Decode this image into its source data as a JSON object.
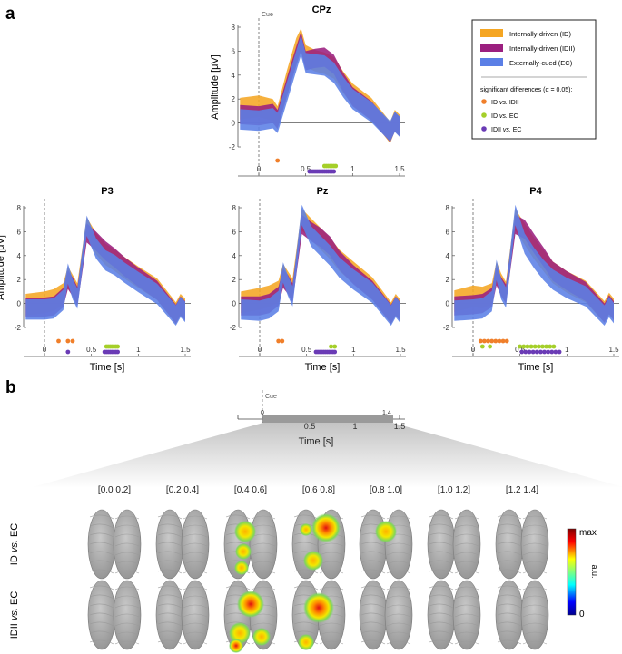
{
  "panel_labels": {
    "a": "a",
    "b": "b"
  },
  "colors": {
    "ID": "#f5a623",
    "IDII": "#9b1f7f",
    "EC": "#5b7fe6",
    "sig_ID_IDII": "#f07f2a",
    "sig_ID_EC": "#a5cf2a",
    "sig_IDII_EC": "#6a3bb5"
  },
  "legend": {
    "series": [
      "Internally-driven (ID)",
      "Internally-driven (IDII)",
      "Externally-cued (EC)"
    ],
    "sig_title": "significant differences (α = 0.05):",
    "sig_items": [
      {
        "pre": "ID ",
        "vs": "vs.",
        "post": " IDII"
      },
      {
        "pre": "ID ",
        "vs": "vs.",
        "post": " EC"
      },
      {
        "pre": "IDII ",
        "vs": "vs.",
        "post": " EC"
      }
    ]
  },
  "cue_label": "Cue",
  "chart_data": [
    {
      "type": "area",
      "title": "CPz",
      "ylabel": "Amplitude [μV]",
      "xlabel": "",
      "xlim": [
        -0.2,
        1.5
      ],
      "ylim": [
        -2,
        8
      ],
      "yticks": [
        "-2",
        "0",
        "2",
        "4",
        "6",
        "8"
      ],
      "xticks": [
        "0",
        "0.5",
        "1",
        "1.5"
      ],
      "series": [
        {
          "key": "ID",
          "x": [
            -0.2,
            0,
            0.15,
            0.2,
            0.3,
            0.4,
            0.45,
            0.5,
            0.6,
            0.7,
            0.8,
            0.9,
            1.0,
            1.2,
            1.4,
            1.45,
            1.5
          ],
          "y": [
            1.2,
            1.4,
            1.1,
            0.5,
            3.5,
            6.2,
            7.0,
            5.6,
            5.2,
            5.0,
            4.6,
            3.4,
            2.4,
            1.2,
            -0.8,
            0.2,
            -0.2
          ]
        },
        {
          "key": "IDII",
          "x": [
            -0.2,
            0,
            0.15,
            0.2,
            0.3,
            0.4,
            0.45,
            0.5,
            0.6,
            0.7,
            0.8,
            0.9,
            1.0,
            1.2,
            1.4,
            1.45,
            1.5
          ],
          "y": [
            0.7,
            0.6,
            0.8,
            0.3,
            3.0,
            5.6,
            6.8,
            5.2,
            5.4,
            5.5,
            4.9,
            3.4,
            2.2,
            1.0,
            -0.8,
            0.1,
            -0.3
          ]
        },
        {
          "key": "EC",
          "x": [
            -0.2,
            0,
            0.15,
            0.2,
            0.3,
            0.4,
            0.45,
            0.5,
            0.6,
            0.7,
            0.8,
            0.9,
            1.0,
            1.2,
            1.4,
            1.45,
            1.5
          ],
          "y": [
            0.3,
            0.2,
            0.4,
            0.0,
            2.6,
            5.2,
            6.5,
            5.0,
            4.9,
            4.8,
            4.2,
            3.0,
            2.0,
            0.9,
            -0.7,
            0.1,
            -0.3
          ]
        }
      ],
      "sig": [
        {
          "key": "sig_ID_IDII",
          "row": 0,
          "x": [
            0.2
          ]
        },
        {
          "key": "sig_ID_EC",
          "row": 1,
          "x": [
            0.7,
            0.72,
            0.74,
            0.76,
            0.78,
            0.8,
            0.82
          ]
        },
        {
          "key": "sig_IDII_EC",
          "row": 2,
          "x": [
            0.54,
            0.56,
            0.58,
            0.6,
            0.62,
            0.64,
            0.66,
            0.68,
            0.7,
            0.72,
            0.74,
            0.76,
            0.78,
            0.8
          ]
        }
      ]
    },
    {
      "type": "area",
      "title": "P3",
      "ylabel": "Amplitude [μV]",
      "xlabel": "Time [s]",
      "xlim": [
        -0.2,
        1.5
      ],
      "ylim": [
        -2,
        8
      ],
      "yticks": [
        "-2",
        "0",
        "2",
        "4",
        "6",
        "8"
      ],
      "xticks": [
        "0",
        "0.5",
        "1",
        "1.5"
      ],
      "series": [
        {
          "key": "ID",
          "x": [
            -0.2,
            0,
            0.1,
            0.2,
            0.25,
            0.3,
            0.35,
            0.45,
            0.55,
            0.65,
            0.75,
            0.85,
            1.0,
            1.2,
            1.4,
            1.45,
            1.5
          ],
          "y": [
            -0.1,
            0.1,
            0.3,
            0.8,
            2.2,
            1.5,
            0.8,
            6.3,
            5.0,
            4.1,
            3.6,
            3.0,
            2.2,
            1.2,
            -0.8,
            -0.1,
            -0.5
          ]
        },
        {
          "key": "IDII",
          "x": [
            -0.2,
            0,
            0.1,
            0.2,
            0.25,
            0.3,
            0.35,
            0.45,
            0.55,
            0.65,
            0.75,
            0.85,
            1.0,
            1.2,
            1.4,
            1.45,
            1.5
          ],
          "y": [
            -0.3,
            -0.3,
            -0.2,
            0.5,
            2.0,
            1.4,
            0.6,
            5.9,
            5.2,
            4.4,
            3.8,
            3.1,
            2.2,
            1.1,
            -0.9,
            -0.2,
            -0.6
          ]
        },
        {
          "key": "EC",
          "x": [
            -0.2,
            0,
            0.1,
            0.2,
            0.25,
            0.3,
            0.35,
            0.45,
            0.55,
            0.65,
            0.75,
            0.85,
            1.0,
            1.2,
            1.4,
            1.45,
            1.5
          ],
          "y": [
            -0.5,
            -0.5,
            -0.4,
            0.3,
            2.5,
            1.2,
            0.4,
            6.5,
            4.6,
            3.6,
            3.2,
            2.6,
            1.8,
            0.8,
            -1.0,
            -0.3,
            -0.7
          ]
        }
      ],
      "sig": [
        {
          "key": "sig_ID_IDII",
          "row": 0,
          "x": [
            0.15,
            0.25,
            0.3
          ]
        },
        {
          "key": "sig_IDII_EC",
          "row": 2,
          "x": [
            0.25
          ]
        },
        {
          "key": "sig_ID_EC",
          "row": 1,
          "x": [
            0.66,
            0.68,
            0.7,
            0.72,
            0.74,
            0.76,
            0.78
          ]
        },
        {
          "key": "sig_IDII_EC",
          "row": 2,
          "x": [
            0.64,
            0.66,
            0.68,
            0.7,
            0.72,
            0.74,
            0.76,
            0.78
          ]
        }
      ]
    },
    {
      "type": "area",
      "title": "Pz",
      "ylabel": "",
      "xlabel": "Time [s]",
      "xlim": [
        -0.2,
        1.5
      ],
      "ylim": [
        -2,
        8
      ],
      "yticks": [
        "-2",
        "0",
        "2",
        "4",
        "6",
        "8"
      ],
      "xticks": [
        "0",
        "0.5",
        "1",
        "1.5"
      ],
      "series": [
        {
          "key": "ID",
          "x": [
            -0.2,
            0,
            0.1,
            0.2,
            0.25,
            0.3,
            0.35,
            0.45,
            0.55,
            0.65,
            0.75,
            0.85,
            1.0,
            1.2,
            1.4,
            1.45,
            1.5
          ],
          "y": [
            0.1,
            0.4,
            0.6,
            1.0,
            2.4,
            1.8,
            1.2,
            7.0,
            6.2,
            5.4,
            4.6,
            3.6,
            2.6,
            1.3,
            -0.8,
            -0.1,
            -0.6
          ]
        },
        {
          "key": "IDII",
          "x": [
            -0.2,
            0,
            0.1,
            0.2,
            0.25,
            0.3,
            0.35,
            0.45,
            0.55,
            0.65,
            0.75,
            0.85,
            1.0,
            1.2,
            1.4,
            1.45,
            1.5
          ],
          "y": [
            -0.2,
            -0.2,
            0.0,
            0.6,
            2.1,
            1.6,
            0.9,
            6.6,
            6.0,
            5.5,
            4.8,
            3.6,
            2.4,
            1.1,
            -0.9,
            -0.2,
            -0.7
          ]
        },
        {
          "key": "EC",
          "x": [
            -0.2,
            0,
            0.1,
            0.2,
            0.25,
            0.3,
            0.35,
            0.45,
            0.55,
            0.65,
            0.75,
            0.85,
            1.0,
            1.2,
            1.4,
            1.45,
            1.5
          ],
          "y": [
            -0.5,
            -0.6,
            -0.4,
            0.2,
            2.6,
            1.5,
            0.6,
            7.4,
            5.6,
            4.8,
            4.0,
            3.0,
            2.0,
            0.9,
            -1.0,
            -0.3,
            -0.8
          ]
        }
      ],
      "sig": [
        {
          "key": "sig_ID_IDII",
          "row": 0,
          "x": [
            0.2,
            0.24
          ]
        },
        {
          "key": "sig_ID_EC",
          "row": 1,
          "x": [
            0.76,
            0.8
          ]
        },
        {
          "key": "sig_IDII_EC",
          "row": 2,
          "x": [
            0.6,
            0.62,
            0.64,
            0.66,
            0.68,
            0.7,
            0.72,
            0.74,
            0.76,
            0.78,
            0.8
          ]
        }
      ]
    },
    {
      "type": "area",
      "title": "P4",
      "ylabel": "",
      "xlabel": "Time [s]",
      "xlim": [
        -0.2,
        1.5
      ],
      "ylim": [
        -2,
        8
      ],
      "yticks": [
        "-2",
        "0",
        "2",
        "4",
        "6",
        "8"
      ],
      "xticks": [
        "0",
        "0.5",
        "1",
        "1.5"
      ],
      "series": [
        {
          "key": "ID",
          "x": [
            -0.2,
            0,
            0.1,
            0.2,
            0.25,
            0.3,
            0.35,
            0.45,
            0.55,
            0.65,
            0.75,
            0.85,
            1.0,
            1.2,
            1.4,
            1.45,
            1.5
          ],
          "y": [
            0.2,
            0.6,
            0.5,
            0.8,
            2.6,
            1.6,
            0.9,
            7.0,
            5.8,
            4.6,
            3.6,
            2.6,
            1.8,
            1.0,
            -0.7,
            0.0,
            -0.5
          ]
        },
        {
          "key": "IDII",
          "x": [
            -0.2,
            0,
            0.1,
            0.2,
            0.25,
            0.3,
            0.35,
            0.45,
            0.55,
            0.65,
            0.75,
            0.85,
            1.0,
            1.2,
            1.4,
            1.45,
            1.5
          ],
          "y": [
            -0.2,
            -0.1,
            0.0,
            0.5,
            2.3,
            1.4,
            0.8,
            6.6,
            6.2,
            5.0,
            3.9,
            2.7,
            1.9,
            1.0,
            -0.8,
            -0.1,
            -0.6
          ]
        },
        {
          "key": "EC",
          "x": [
            -0.2,
            0,
            0.1,
            0.2,
            0.25,
            0.3,
            0.35,
            0.45,
            0.55,
            0.65,
            0.75,
            0.85,
            1.0,
            1.2,
            1.4,
            1.45,
            1.5
          ],
          "y": [
            -0.6,
            -0.5,
            -0.4,
            0.2,
            2.8,
            1.2,
            0.5,
            7.4,
            5.0,
            3.8,
            2.8,
            2.0,
            1.3,
            0.6,
            -1.0,
            -0.3,
            -0.8
          ]
        }
      ],
      "sig": [
        {
          "key": "sig_ID_IDII",
          "row": 0,
          "x": [
            0.08,
            0.12,
            0.16,
            0.2,
            0.24,
            0.28,
            0.32,
            0.36
          ]
        },
        {
          "key": "sig_ID_EC",
          "row": 1,
          "x": [
            0.1,
            0.18,
            0.5,
            0.54,
            0.58,
            0.62,
            0.66,
            0.7,
            0.74,
            0.78,
            0.82,
            0.86
          ]
        },
        {
          "key": "sig_IDII_EC",
          "row": 2,
          "x": [
            0.52,
            0.56,
            0.6,
            0.64,
            0.68,
            0.72,
            0.76,
            0.8,
            0.84,
            0.88,
            0.92
          ]
        }
      ]
    }
  ],
  "timeline": {
    "cue": "Cue",
    "start": "0",
    "end": "1.4",
    "ticks": [
      "0.5",
      "1",
      "1.5"
    ],
    "xlabel": "Time [s]"
  },
  "topo": {
    "windows": [
      "[0.0 0.2]",
      "[0.2 0.4]",
      "[0.4 0.6]",
      "[0.6 0.8]",
      "[0.8 1.0]",
      "[1.0 1.2]",
      "[1.2 1.4]"
    ],
    "rows": [
      {
        "label_pre": "ID ",
        "label_vs": "vs.",
        "label_post": " EC"
      },
      {
        "label_pre": "IDII ",
        "label_vs": "vs.",
        "label_post": " EC"
      }
    ],
    "colorbar": {
      "max": "max",
      "min": "0",
      "label": "a.u."
    }
  }
}
